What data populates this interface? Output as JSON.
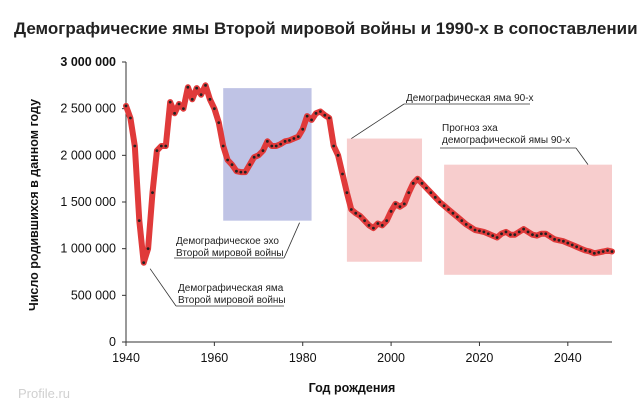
{
  "chart_data": {
    "type": "line",
    "title": "Демографические ямы Второй мировой войны и 1990-х в сопоставлении",
    "xlabel": "Год рождения",
    "ylabel": "Число родившихся в данном году",
    "xlim": [
      1940,
      2050
    ],
    "ylim": [
      0,
      3000000
    ],
    "x_ticks": [
      1940,
      1960,
      1980,
      2000,
      2020,
      2040
    ],
    "x_tick_labels": [
      "1940",
      "1960",
      "1980",
      "2000",
      "2020",
      "2040"
    ],
    "y_ticks": [
      0,
      500000,
      1000000,
      1500000,
      2000000,
      2500000,
      3000000
    ],
    "y_tick_labels": [
      "0",
      "500 000",
      "1 000 000",
      "1 500 000",
      "2 000 000",
      "2 500 000",
      "3 000 000"
    ],
    "grid": false,
    "legend": "none",
    "line_color": "#e03a3a",
    "marker_color": "#222222",
    "series": [
      {
        "x": [
          1940,
          1941,
          1942,
          1943,
          1944,
          1945,
          1946,
          1947,
          1948,
          1949,
          1950,
          1951,
          1952,
          1953,
          1954,
          1955,
          1956,
          1957,
          1958,
          1959,
          1960,
          1961,
          1962,
          1963,
          1964,
          1965,
          1966,
          1967,
          1968,
          1969,
          1970,
          1971,
          1972,
          1973,
          1974,
          1975,
          1976,
          1977,
          1978,
          1979,
          1980,
          1981,
          1982,
          1983,
          1984,
          1985,
          1986,
          1987,
          1988,
          1989,
          1990,
          1991,
          1992,
          1993,
          1994,
          1995,
          1996,
          1997,
          1998,
          1999,
          2000,
          2001,
          2002,
          2003,
          2004,
          2005,
          2006,
          2007,
          2008,
          2009,
          2010,
          2011,
          2012,
          2013,
          2014,
          2015,
          2016,
          2017,
          2018,
          2019,
          2020,
          2021,
          2022,
          2023,
          2024,
          2025,
          2026,
          2027,
          2028,
          2029,
          2030,
          2031,
          2032,
          2033,
          2034,
          2035,
          2036,
          2037,
          2038,
          2039,
          2040,
          2041,
          2042,
          2043,
          2044,
          2045,
          2046,
          2047,
          2048,
          2049,
          2050
        ],
        "y": [
          2530000,
          2400000,
          2100000,
          1300000,
          850000,
          1000000,
          1600000,
          2050000,
          2100000,
          2100000,
          2570000,
          2450000,
          2550000,
          2500000,
          2730000,
          2600000,
          2720000,
          2650000,
          2750000,
          2600000,
          2500000,
          2350000,
          2100000,
          1950000,
          1900000,
          1830000,
          1820000,
          1820000,
          1900000,
          1980000,
          2000000,
          2050000,
          2150000,
          2100000,
          2100000,
          2120000,
          2150000,
          2160000,
          2180000,
          2200000,
          2280000,
          2420000,
          2380000,
          2450000,
          2470000,
          2430000,
          2400000,
          2100000,
          2000000,
          1800000,
          1600000,
          1420000,
          1380000,
          1350000,
          1300000,
          1250000,
          1220000,
          1270000,
          1250000,
          1300000,
          1400000,
          1480000,
          1450000,
          1480000,
          1600000,
          1700000,
          1750000,
          1700000,
          1650000,
          1600000,
          1550000,
          1500000,
          1460000,
          1420000,
          1380000,
          1340000,
          1300000,
          1260000,
          1230000,
          1200000,
          1190000,
          1180000,
          1160000,
          1140000,
          1120000,
          1160000,
          1180000,
          1150000,
          1150000,
          1180000,
          1210000,
          1180000,
          1150000,
          1140000,
          1160000,
          1160000,
          1130000,
          1100000,
          1090000,
          1080000,
          1060000,
          1040000,
          1020000,
          1000000,
          980000,
          970000,
          950000,
          960000,
          970000,
          980000,
          970000
        ]
      }
    ],
    "shaded_regions": [
      {
        "x0": 1962,
        "x1": 1982,
        "y0": 1300000,
        "y1": 2720000,
        "color": "#b4b8e0"
      },
      {
        "x0": 1990,
        "x1": 2007,
        "y0": 860000,
        "y1": 2180000,
        "color": "#f6c4c4"
      },
      {
        "x0": 2012,
        "x1": 2050,
        "y0": 720000,
        "y1": 1900000,
        "color": "#f6c4c4"
      }
    ],
    "annotations": [
      {
        "id": "ww2-echo",
        "lines": [
          "Демографическое эхо",
          "Второй мировой войны"
        ],
        "point_x": 1982,
        "point_y": 1300000
      },
      {
        "id": "ww2-pit",
        "lines": [
          "Демографическая яма",
          "Второй мировой войны"
        ],
        "point_x": 1945,
        "point_y": 850000
      },
      {
        "id": "pit-90s",
        "lines": [
          "Демографическая яма 90-х"
        ],
        "point_x": 1991,
        "point_y": 2180000
      },
      {
        "id": "echo-90s",
        "lines": [
          "Прогноз эха",
          "демографической ямы 90-х"
        ],
        "point_x": 2039,
        "point_y": 1900000
      }
    ],
    "watermark": "Profile.ru"
  }
}
